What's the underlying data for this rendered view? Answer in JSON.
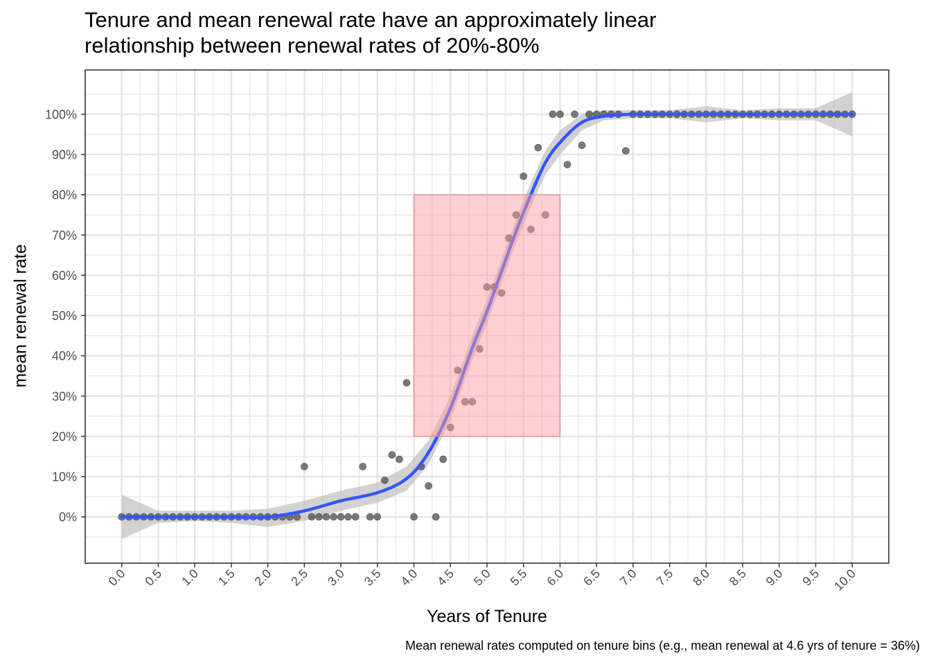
{
  "chart_data": {
    "type": "scatter",
    "title": [
      "Tenure and mean renewal rate have an approximately linear",
      "relationship between renewal rates of 20%-80%"
    ],
    "xlabel": "Years of Tenure",
    "ylabel": "mean renewal rate",
    "caption": "Mean renewal rates computed on tenure bins (e.g., mean renewal at 4.6 yrs of tenure = 36%)",
    "xlim": [
      -0.5,
      10.5
    ],
    "ylim": [
      -11.5,
      111
    ],
    "xticks": [
      "0.0",
      "0.5",
      "1.0",
      "1.5",
      "2.0",
      "2.5",
      "3.0",
      "3.5",
      "4.0",
      "4.5",
      "5.0",
      "5.5",
      "6.0",
      "6.5",
      "7.0",
      "7.5",
      "8.0",
      "8.5",
      "9.0",
      "9.5",
      "10.0"
    ],
    "yticks": [
      "0%",
      "10%",
      "20%",
      "30%",
      "40%",
      "50%",
      "60%",
      "70%",
      "80%",
      "90%",
      "100%"
    ],
    "grid": true,
    "highlight_rect": {
      "x": [
        4.0,
        6.0
      ],
      "y": [
        20,
        80
      ],
      "color": "#ff9aa0"
    },
    "colors": {
      "points": "#555555",
      "smooth": "#3355ff",
      "band": "#bfbfbf",
      "grid": "#e5e5e5"
    },
    "points": [
      [
        0.0,
        0
      ],
      [
        0.1,
        0
      ],
      [
        0.2,
        0
      ],
      [
        0.3,
        0
      ],
      [
        0.4,
        0
      ],
      [
        0.5,
        0
      ],
      [
        0.6,
        0
      ],
      [
        0.7,
        0
      ],
      [
        0.8,
        0
      ],
      [
        0.9,
        0
      ],
      [
        1.0,
        0
      ],
      [
        1.1,
        0
      ],
      [
        1.2,
        0
      ],
      [
        1.3,
        0
      ],
      [
        1.4,
        0
      ],
      [
        1.5,
        0
      ],
      [
        1.6,
        0
      ],
      [
        1.7,
        0
      ],
      [
        1.8,
        0
      ],
      [
        1.9,
        0
      ],
      [
        2.0,
        0
      ],
      [
        2.1,
        0
      ],
      [
        2.2,
        0
      ],
      [
        2.3,
        0
      ],
      [
        2.4,
        0
      ],
      [
        2.5,
        12.5
      ],
      [
        2.6,
        0
      ],
      [
        2.7,
        0
      ],
      [
        2.8,
        0
      ],
      [
        2.9,
        0
      ],
      [
        3.0,
        0
      ],
      [
        3.1,
        0
      ],
      [
        3.2,
        0
      ],
      [
        3.3,
        12.5
      ],
      [
        3.4,
        0
      ],
      [
        3.5,
        0
      ],
      [
        3.6,
        9.1
      ],
      [
        3.7,
        15.4
      ],
      [
        3.8,
        14.3
      ],
      [
        3.9,
        33.3
      ],
      [
        4.0,
        0
      ],
      [
        4.1,
        12.5
      ],
      [
        4.2,
        7.7
      ],
      [
        4.3,
        0
      ],
      [
        4.4,
        14.3
      ],
      [
        4.5,
        22.2
      ],
      [
        4.6,
        36.4
      ],
      [
        4.7,
        28.6
      ],
      [
        4.8,
        28.6
      ],
      [
        4.9,
        41.7
      ],
      [
        5.0,
        57.1
      ],
      [
        5.1,
        57.1
      ],
      [
        5.2,
        55.6
      ],
      [
        5.3,
        69.2
      ],
      [
        5.4,
        75
      ],
      [
        5.5,
        84.6
      ],
      [
        5.6,
        71.4
      ],
      [
        5.7,
        91.7
      ],
      [
        5.8,
        75
      ],
      [
        5.9,
        100
      ],
      [
        6.0,
        100
      ],
      [
        6.1,
        87.5
      ],
      [
        6.2,
        100
      ],
      [
        6.3,
        92.3
      ],
      [
        6.4,
        100
      ],
      [
        6.5,
        100
      ],
      [
        6.6,
        100
      ],
      [
        6.7,
        100
      ],
      [
        6.8,
        100
      ],
      [
        6.9,
        90.9
      ],
      [
        7.0,
        100
      ],
      [
        7.1,
        100
      ],
      [
        7.2,
        100
      ],
      [
        7.3,
        100
      ],
      [
        7.4,
        100
      ],
      [
        7.5,
        100
      ],
      [
        7.6,
        100
      ],
      [
        7.7,
        100
      ],
      [
        7.8,
        100
      ],
      [
        7.9,
        100
      ],
      [
        8.0,
        100
      ],
      [
        8.1,
        100
      ],
      [
        8.2,
        100
      ],
      [
        8.3,
        100
      ],
      [
        8.4,
        100
      ],
      [
        8.5,
        100
      ],
      [
        8.6,
        100
      ],
      [
        8.7,
        100
      ],
      [
        8.8,
        100
      ],
      [
        8.9,
        100
      ],
      [
        9.0,
        100
      ],
      [
        9.1,
        100
      ],
      [
        9.2,
        100
      ],
      [
        9.3,
        100
      ],
      [
        9.4,
        100
      ],
      [
        9.5,
        100
      ],
      [
        9.6,
        100
      ],
      [
        9.7,
        100
      ],
      [
        9.8,
        100
      ],
      [
        9.9,
        100
      ],
      [
        10.0,
        100
      ]
    ],
    "smooth": {
      "x": [
        0.0,
        0.5,
        1.0,
        1.5,
        2.0,
        2.5,
        3.0,
        3.5,
        3.9,
        4.2,
        4.5,
        4.8,
        5.0,
        5.2,
        5.4,
        5.6,
        5.8,
        6.0,
        6.3,
        6.6,
        7.0,
        7.5,
        8.0,
        8.5,
        9.0,
        9.5,
        10.0
      ],
      "y": [
        0,
        0,
        0,
        0,
        0,
        1.5,
        4,
        6,
        9.5,
        16,
        27,
        42,
        51,
        61,
        71,
        80,
        88,
        93,
        98,
        99.5,
        100,
        100,
        100,
        100,
        100,
        100,
        100
      ],
      "lower": [
        -5.5,
        -1.5,
        -1,
        -1.5,
        -2.5,
        -1,
        1.5,
        3.5,
        6.5,
        13,
        24,
        39,
        48,
        58,
        68,
        77,
        85,
        90,
        96,
        98.5,
        99,
        99,
        98,
        99,
        98.5,
        98.5,
        94.5
      ],
      "upper": [
        5.5,
        1.5,
        1.5,
        1.5,
        2,
        4,
        6.5,
        8.5,
        12.5,
        19,
        30,
        45,
        54,
        64,
        74,
        83,
        91,
        96,
        100,
        101,
        101,
        101,
        102,
        101,
        101.5,
        101.5,
        105.5
      ]
    }
  }
}
